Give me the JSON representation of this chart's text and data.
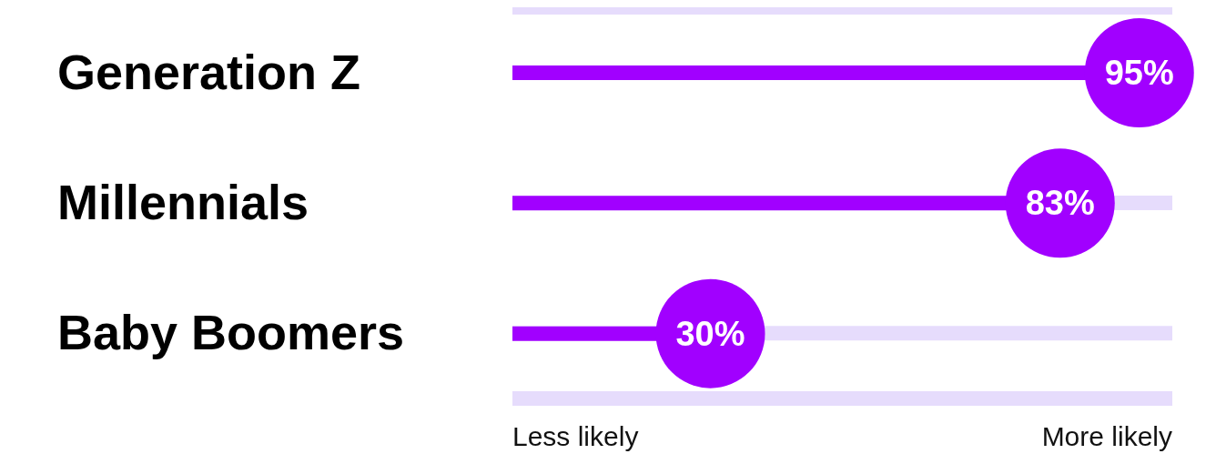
{
  "chart_data": {
    "type": "lollipop",
    "orientation": "horizontal",
    "categories": [
      "Generation Z",
      "Millennials",
      "Baby Boomers"
    ],
    "values": [
      95,
      83,
      30
    ],
    "value_labels": [
      "95%",
      "83%",
      "30%"
    ],
    "color": "#a100ff",
    "grid": "y",
    "annotations": [
      "Less likely",
      "More likely"
    ]
  }
}
